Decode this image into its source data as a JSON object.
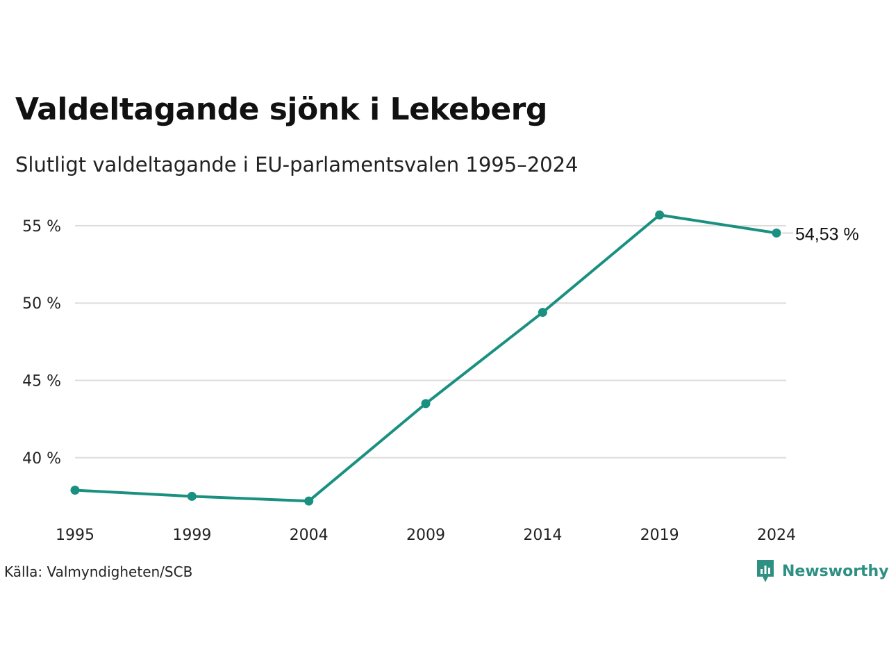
{
  "header": {
    "title": "Valdeltagande sjönk i Lekeberg",
    "subtitle": "Slutligt valdeltagande i EU-parlamentsvalen 1995–2024"
  },
  "footer": {
    "source": "Källa: Valmyndigheten/SCB",
    "brand": "Newsworthy"
  },
  "colors": {
    "line": "#1a9080",
    "grid": "#dddddd",
    "brand": "#2e8f83"
  },
  "chart_data": {
    "type": "line",
    "x": [
      "1995",
      "1999",
      "2004",
      "2009",
      "2014",
      "2019",
      "2024"
    ],
    "series": [
      {
        "values": [
          37.9,
          37.5,
          37.2,
          43.5,
          49.4,
          55.7,
          54.53
        ]
      }
    ],
    "yticks": [
      40,
      45,
      50,
      55
    ],
    "ytick_labels": [
      "40 %",
      "45 %",
      "50 %",
      "55 %"
    ],
    "ylim": [
      36.8,
      56.3
    ],
    "end_label": "54,53 %",
    "grid": true,
    "legend": "none"
  }
}
